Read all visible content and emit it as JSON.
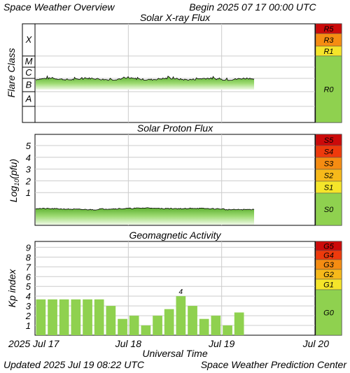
{
  "header": {
    "title": "Space Weather Overview",
    "begin_label": "Begin",
    "begin_time": "2025 07 17 00:00 UTC"
  },
  "footer": {
    "updated_label": "Updated",
    "updated_time": "2025 Jul 19 08:22 UTC",
    "credit": "Space Weather Prediction Center"
  },
  "x_axis": {
    "title": "Universal Time",
    "ticks": [
      "2025 Jul 17",
      "Jul 18",
      "Jul 19",
      "Jul 20"
    ]
  },
  "colors": {
    "data_green": "#8fd14f",
    "quiet_green": "#8fd14f",
    "level_1": "#f5e52a",
    "level_2": "#f7b91a",
    "level_3": "#f58c12",
    "level_4": "#ee3a0c",
    "level_5": "#cc0a0a",
    "grid": "#cccccc"
  },
  "chart_data": [
    {
      "type": "area",
      "title": "Solar X-ray Flux",
      "ylabel": "Flare Class",
      "y_classes": [
        "X",
        "M",
        "C",
        "B",
        "A"
      ],
      "x_range_days": [
        0,
        3
      ],
      "data_end_day": 2.35,
      "baseline_level": "B9",
      "peaks": [
        {
          "day": 0.67,
          "level": "C1"
        }
      ],
      "scale": {
        "labels": [
          "R5",
          "R3",
          "R1",
          "R0"
        ],
        "colors": [
          "#cc0a0a",
          "#f58c12",
          "#f5e52a",
          "#8fd14f"
        ]
      }
    },
    {
      "type": "area",
      "title": "Solar Proton Flux",
      "ylabel": "Log10(pfu)",
      "yticks": [
        "5",
        "4",
        "3",
        "2",
        "1"
      ],
      "x_range_days": [
        0,
        3
      ],
      "data_end_day": 2.35,
      "baseline_log10_pfu": -0.4,
      "scale": {
        "labels": [
          "S5",
          "S4",
          "S3",
          "S2",
          "S1",
          "S0"
        ],
        "colors": [
          "#cc0a0a",
          "#ee3a0c",
          "#f58c12",
          "#f7b91a",
          "#f5e52a",
          "#8fd14f"
        ]
      }
    },
    {
      "type": "bar",
      "title": "Geomagnetic Activity",
      "ylabel": "Kp index",
      "yticks": [
        "9",
        "8",
        "7",
        "6",
        "5",
        "4",
        "3",
        "2",
        "1"
      ],
      "ylim": [
        0,
        9.6
      ],
      "interval_hours": 3,
      "values": [
        3.67,
        3.67,
        3.67,
        3.67,
        3.67,
        3.67,
        3.0,
        1.67,
        2.0,
        1.0,
        2.0,
        2.67,
        4.0,
        3.0,
        1.67,
        2.0,
        1.0,
        2.33
      ],
      "annotation": "4",
      "scale": {
        "labels": [
          "G5",
          "G4",
          "G3",
          "G2",
          "G1",
          "G0"
        ],
        "colors": [
          "#cc0a0a",
          "#ee3a0c",
          "#f58c12",
          "#f7b91a",
          "#f5e52a",
          "#8fd14f"
        ]
      }
    }
  ]
}
